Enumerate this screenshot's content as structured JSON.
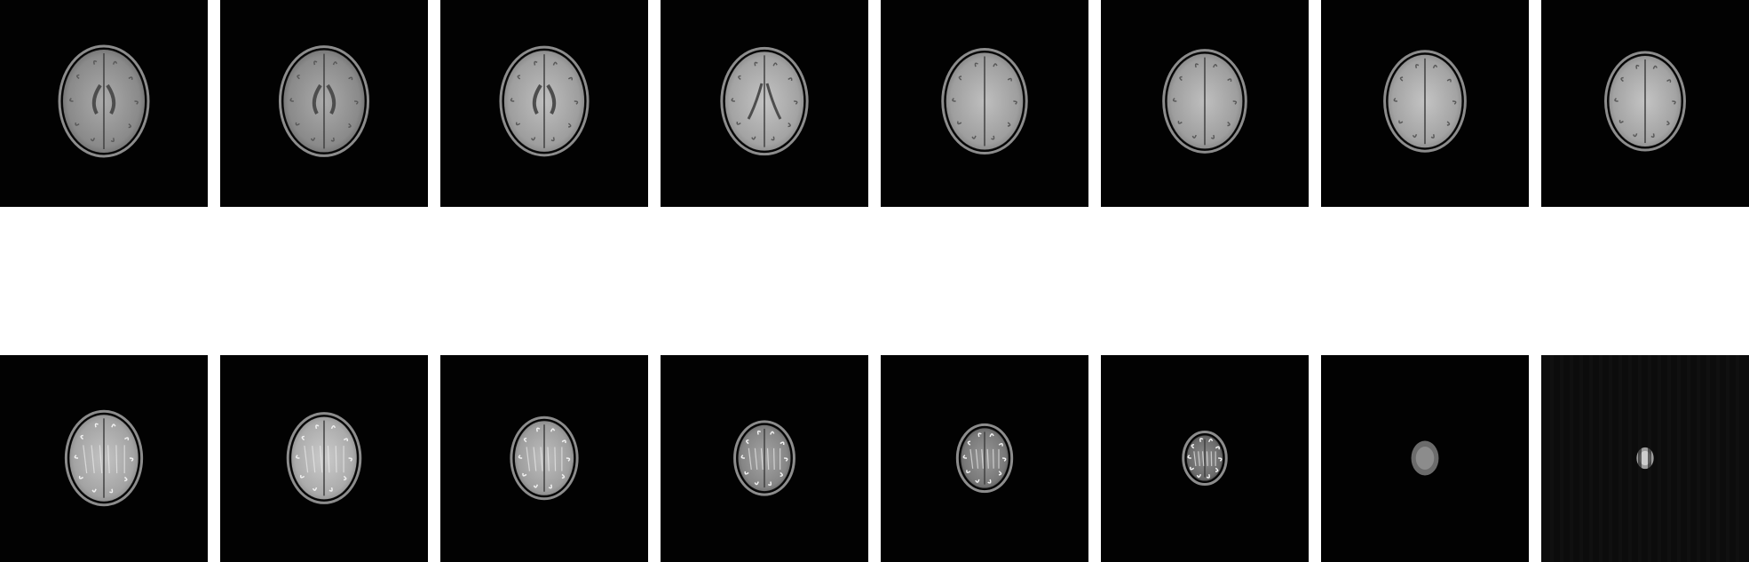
{
  "figure": {
    "background": "#ffffff",
    "panel_background": "#000000",
    "rows": [
      {
        "name": "top-row",
        "slices": [
          {
            "scale": 1.0,
            "brightness": 0.62,
            "shape": "axial-ventricles"
          },
          {
            "scale": 0.99,
            "brightness": 0.62,
            "shape": "axial-ventricles"
          },
          {
            "scale": 0.98,
            "brightness": 0.7,
            "shape": "axial-ventricles"
          },
          {
            "scale": 0.96,
            "brightness": 0.72,
            "shape": "axial-lateral"
          },
          {
            "scale": 0.94,
            "brightness": 0.7,
            "shape": "axial-upper"
          },
          {
            "scale": 0.92,
            "brightness": 0.7,
            "shape": "axial-upper"
          },
          {
            "scale": 0.9,
            "brightness": 0.72,
            "shape": "axial-upper"
          },
          {
            "scale": 0.88,
            "brightness": 0.72,
            "shape": "axial-upper"
          }
        ]
      },
      {
        "name": "bottom-row",
        "slices": [
          {
            "scale": 0.84,
            "brightness": 0.72,
            "shape": "vertex-gyri"
          },
          {
            "scale": 0.8,
            "brightness": 0.75,
            "shape": "vertex-gyri"
          },
          {
            "scale": 0.72,
            "brightness": 0.7,
            "shape": "vertex-gyri"
          },
          {
            "scale": 0.64,
            "brightness": 0.6,
            "shape": "vertex-gyri"
          },
          {
            "scale": 0.58,
            "brightness": 0.55,
            "shape": "vertex-gyri"
          },
          {
            "scale": 0.44,
            "brightness": 0.5,
            "shape": "vertex-small"
          },
          {
            "scale": 0.32,
            "brightness": 0.55,
            "shape": "blob"
          },
          {
            "scale": 0.2,
            "brightness": 0.8,
            "shape": "blob-bright"
          }
        ]
      }
    ]
  }
}
